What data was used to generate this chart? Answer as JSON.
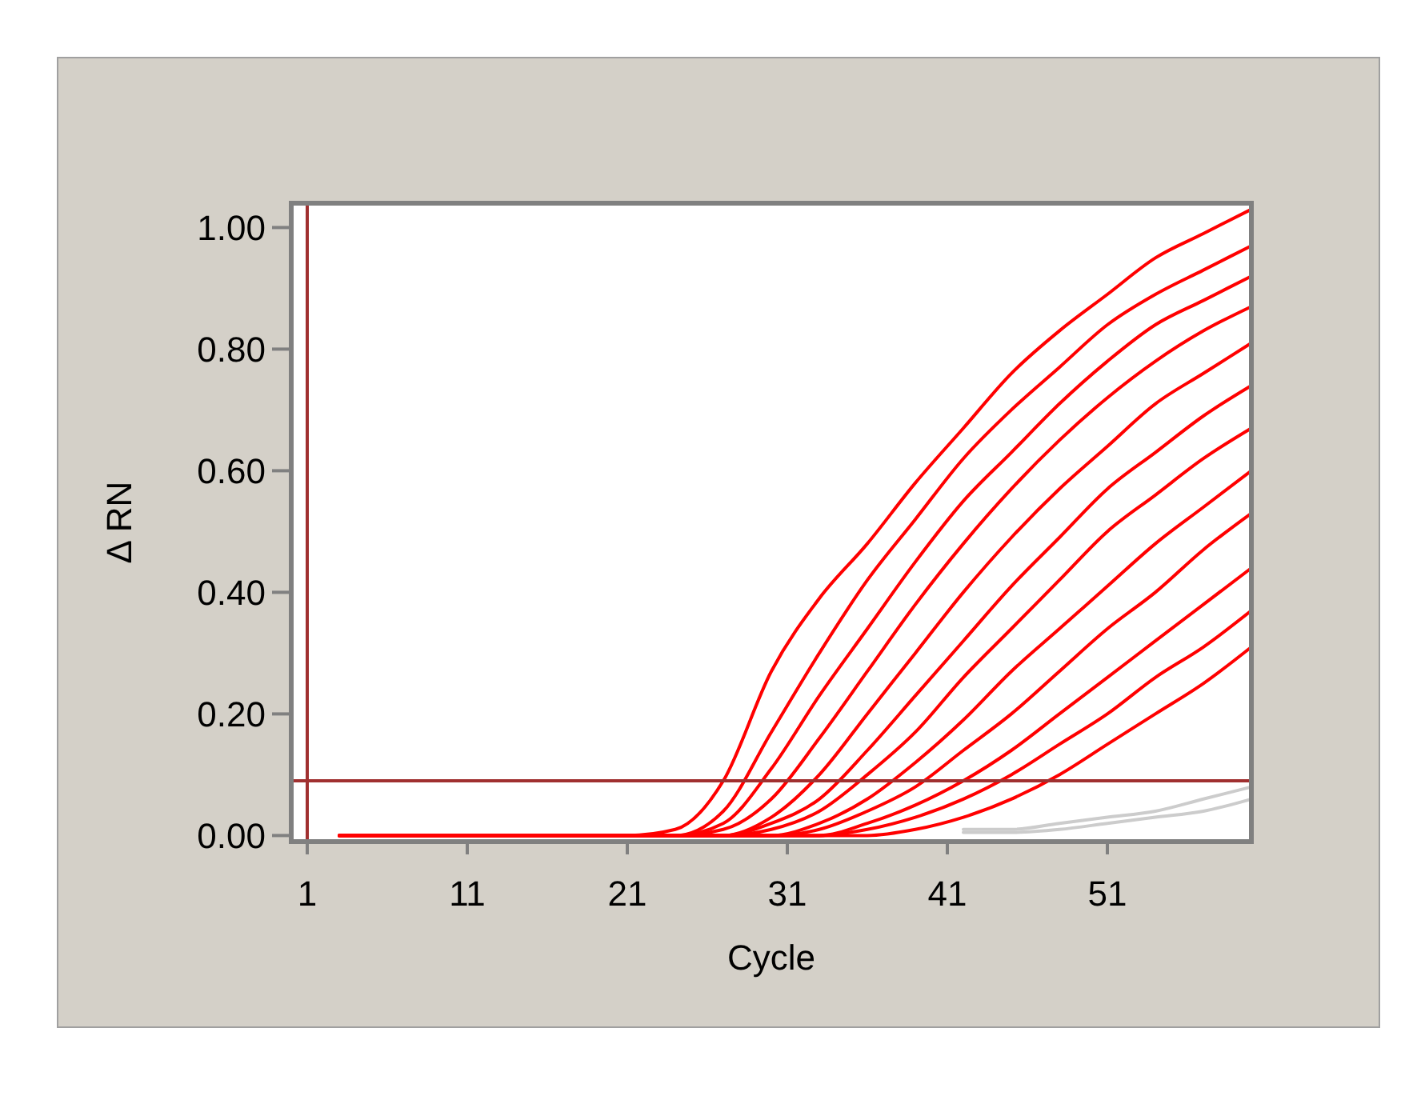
{
  "chart_data": {
    "type": "line",
    "xlabel": "Cycle",
    "ylabel": "Δ RN",
    "x": [
      3,
      21,
      24,
      27,
      30,
      33,
      36,
      39,
      42,
      45,
      48,
      51,
      54,
      57,
      60
    ],
    "xlim": [
      0,
      60
    ],
    "xticks": [
      1,
      11,
      21,
      31,
      41,
      51
    ],
    "ylim": [
      -0.01,
      1.04
    ],
    "yticks": [
      {
        "value": 0,
        "label": "0.00"
      },
      {
        "value": 0.2,
        "label": "0.20"
      },
      {
        "value": 0.4,
        "label": "0.40"
      },
      {
        "value": 0.6,
        "label": "0.60"
      },
      {
        "value": 0.8,
        "label": "0.80"
      },
      {
        "value": 1,
        "label": "1.00"
      }
    ],
    "grid": false,
    "marker": "none",
    "line_style": "solid",
    "ref_lines": [
      {
        "axis": "x",
        "value": 1,
        "color": "#a03030"
      },
      {
        "axis": "y",
        "value": 0.09,
        "color": "#a03030"
      }
    ],
    "series": [
      {
        "color": "#cccccc",
        "x": [
          42,
          45,
          48,
          51,
          54,
          57,
          60
        ],
        "values": [
          0.01,
          0.01,
          0.02,
          0.03,
          0.04,
          0.06,
          0.08
        ]
      },
      {
        "color": "#cccccc",
        "x": [
          42,
          45,
          48,
          51,
          54,
          57,
          60
        ],
        "values": [
          0.005,
          0.005,
          0.01,
          0.02,
          0.03,
          0.04,
          0.06
        ]
      },
      {
        "color": "#ff0000",
        "values": [
          0,
          0,
          0.01,
          0.09,
          0.27,
          0.39,
          0.48,
          0.58,
          0.67,
          0.76,
          0.83,
          0.89,
          0.95,
          0.99,
          1.03
        ]
      },
      {
        "color": "#ff0000",
        "values": [
          0,
          0,
          0,
          0.04,
          0.17,
          0.3,
          0.42,
          0.52,
          0.62,
          0.7,
          0.77,
          0.84,
          0.89,
          0.93,
          0.97
        ]
      },
      {
        "color": "#ff0000",
        "values": [
          0,
          0,
          0,
          0.02,
          0.11,
          0.23,
          0.34,
          0.45,
          0.55,
          0.63,
          0.71,
          0.78,
          0.84,
          0.88,
          0.92
        ]
      },
      {
        "color": "#ff0000",
        "values": [
          0,
          0,
          0,
          0.01,
          0.06,
          0.16,
          0.27,
          0.38,
          0.48,
          0.57,
          0.65,
          0.72,
          0.78,
          0.83,
          0.87
        ]
      },
      {
        "color": "#ff0000",
        "values": [
          0,
          0,
          0,
          0,
          0.03,
          0.1,
          0.2,
          0.3,
          0.4,
          0.49,
          0.57,
          0.64,
          0.71,
          0.76,
          0.81
        ]
      },
      {
        "color": "#ff0000",
        "values": [
          0,
          0,
          0,
          0,
          0.02,
          0.06,
          0.14,
          0.23,
          0.32,
          0.41,
          0.49,
          0.57,
          0.63,
          0.69,
          0.74
        ]
      },
      {
        "color": "#ff0000",
        "values": [
          0,
          0,
          0,
          0,
          0.01,
          0.04,
          0.1,
          0.17,
          0.26,
          0.34,
          0.42,
          0.5,
          0.56,
          0.62,
          0.67
        ]
      },
      {
        "color": "#ff0000",
        "values": [
          0,
          0,
          0,
          0,
          0,
          0.02,
          0.06,
          0.12,
          0.19,
          0.27,
          0.34,
          0.41,
          0.48,
          0.54,
          0.6
        ]
      },
      {
        "color": "#ff0000",
        "values": [
          0,
          0,
          0,
          0,
          0,
          0.01,
          0.04,
          0.08,
          0.14,
          0.2,
          0.27,
          0.34,
          0.4,
          0.47,
          0.53
        ]
      },
      {
        "color": "#ff0000",
        "values": [
          0,
          0,
          0,
          0,
          0,
          0,
          0.02,
          0.05,
          0.09,
          0.14,
          0.2,
          0.26,
          0.32,
          0.38,
          0.44
        ]
      },
      {
        "color": "#ff0000",
        "values": [
          0,
          0,
          0,
          0,
          0,
          0,
          0.01,
          0.03,
          0.06,
          0.1,
          0.15,
          0.2,
          0.26,
          0.31,
          0.37
        ]
      },
      {
        "color": "#ff0000",
        "values": [
          0,
          0,
          0,
          0,
          0,
          0,
          0,
          0.01,
          0.03,
          0.06,
          0.1,
          0.15,
          0.2,
          0.25,
          0.31
        ]
      }
    ]
  }
}
